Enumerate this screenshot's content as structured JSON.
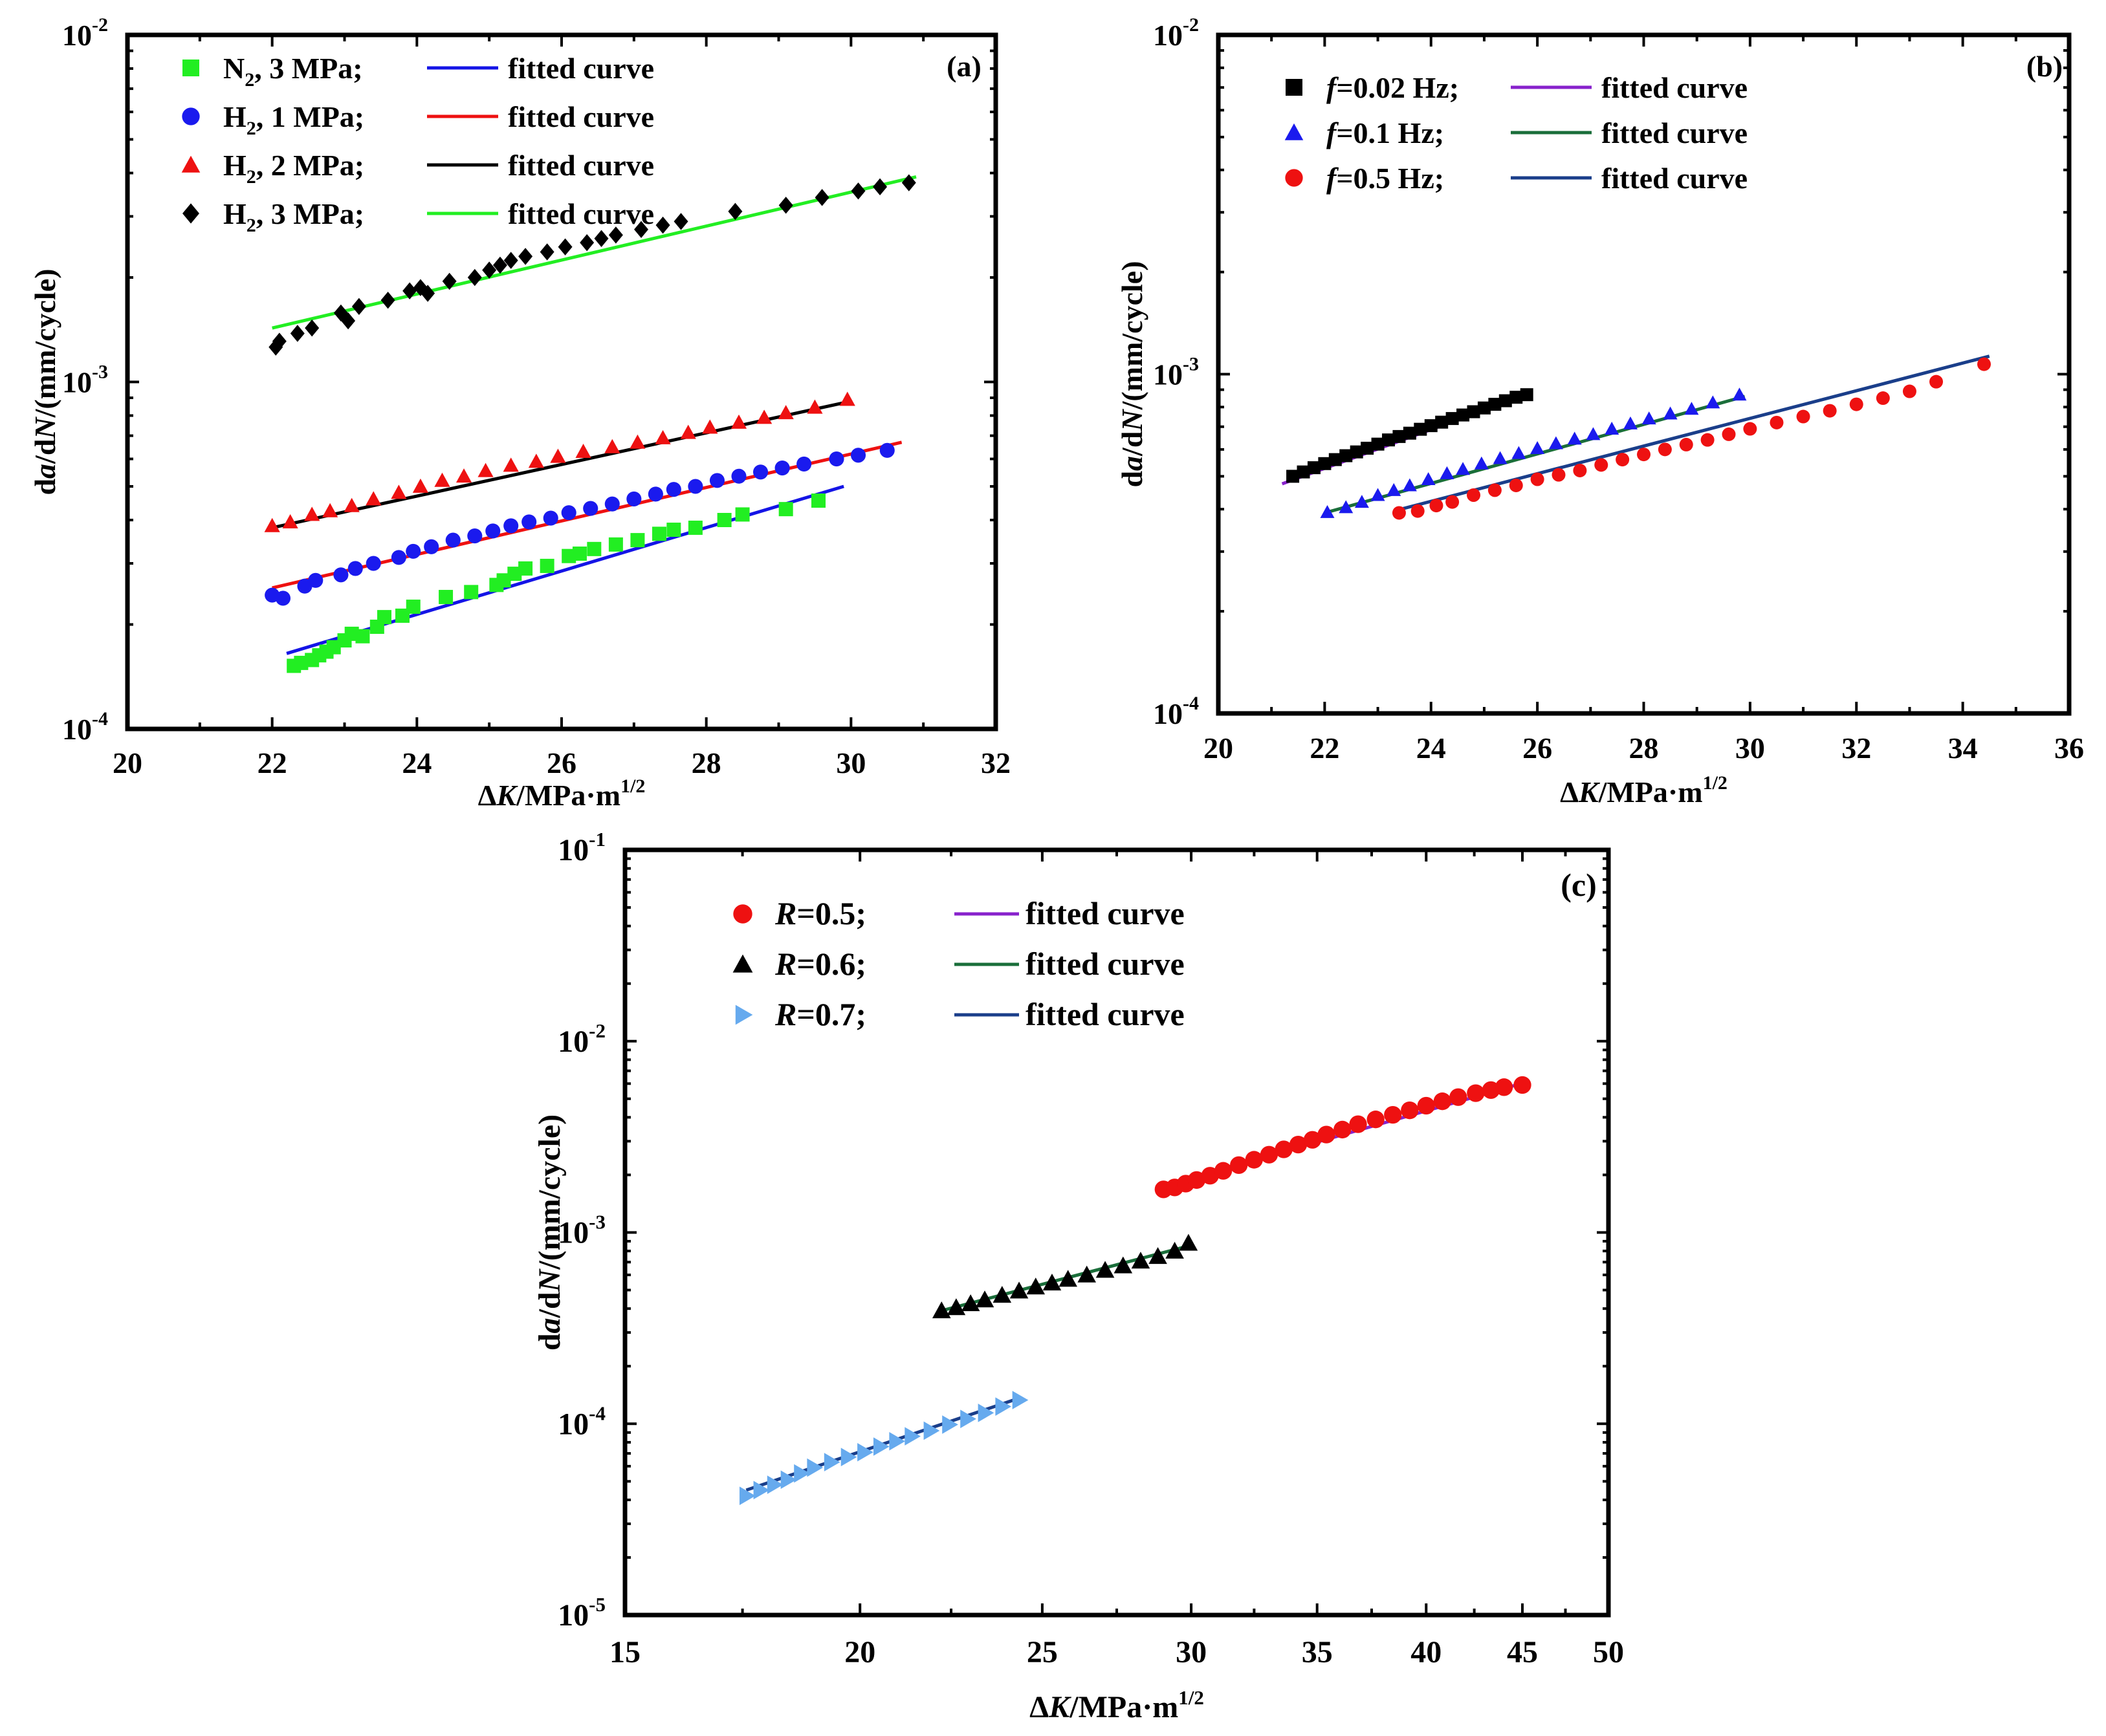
{
  "chart_data": [
    {
      "type": "scatter",
      "panel_label": "(a)",
      "xlabel": "ΔK/MPa·m1/2",
      "ylabel": "da/dN/(mm/cycle)",
      "xscale": "linear",
      "yscale": "log",
      "xlim": [
        20,
        32
      ],
      "ylim": [
        0.0001,
        0.01
      ],
      "xticks": [
        20,
        22,
        24,
        26,
        28,
        30,
        32
      ],
      "yticks": [
        0.0001,
        0.001,
        0.01
      ],
      "ytick_labels": [
        {
          "base": "10",
          "exp": "-4"
        },
        {
          "base": "10",
          "exp": "-3"
        },
        {
          "base": "10",
          "exp": "-2"
        }
      ],
      "legend_position": "top-left",
      "legend_fit_label": "fitted curve",
      "series": [
        {
          "name": "N2, 3 MPa;",
          "name_base": "N",
          "name_sub": "2",
          "name_rest": ",  3 MPa;",
          "marker": "square",
          "color": "#22ee22",
          "fit_color": "#1414e6",
          "fit": {
            "x0": 22.2,
            "y0": 0.000165,
            "x1": 29.9,
            "y1": 0.0005
          },
          "x": [
            22.3,
            22.4,
            22.55,
            22.65,
            22.75,
            22.85,
            23.0,
            23.1,
            23.25,
            23.45,
            23.55,
            23.8,
            23.95,
            24.4,
            24.75,
            25.1,
            25.2,
            25.35,
            25.5,
            25.8,
            26.1,
            26.25,
            26.45,
            26.75,
            27.05,
            27.35,
            27.55,
            27.85,
            28.25,
            28.5,
            29.1,
            29.55
          ],
          "y": [
            0.000152,
            0.000155,
            0.000158,
            0.000163,
            0.000167,
            0.000172,
            0.00018,
            0.000188,
            0.000185,
            0.000197,
            0.00021,
            0.000212,
            0.000225,
            0.00024,
            0.000248,
            0.00026,
            0.000268,
            0.00028,
            0.00029,
            0.000295,
            0.000315,
            0.00032,
            0.00033,
            0.00034,
            0.00035,
            0.000365,
            0.000375,
            0.00038,
            0.0004,
            0.000415,
            0.00043,
            0.000455
          ]
        },
        {
          "name": "H2, 1 MPa;",
          "name_base": "H",
          "name_sub": "2",
          "name_rest": ",  1 MPa;",
          "marker": "circle",
          "color": "#1a1aee",
          "fit_color": "#ee1111",
          "fit": {
            "x0": 22.0,
            "y0": 0.000255,
            "x1": 30.7,
            "y1": 0.00067
          },
          "x": [
            22.0,
            22.15,
            22.45,
            22.6,
            22.95,
            23.15,
            23.4,
            23.75,
            23.95,
            24.2,
            24.5,
            24.8,
            25.05,
            25.3,
            25.55,
            25.85,
            26.1,
            26.4,
            26.7,
            27.0,
            27.3,
            27.55,
            27.85,
            28.15,
            28.45,
            28.75,
            29.05,
            29.35,
            29.8,
            30.1,
            30.5
          ],
          "y": [
            0.000243,
            0.000238,
            0.000258,
            0.000268,
            0.000278,
            0.00029,
            0.0003,
            0.000312,
            0.000325,
            0.000335,
            0.00035,
            0.00036,
            0.000372,
            0.000385,
            0.000395,
            0.000405,
            0.00042,
            0.000432,
            0.000445,
            0.00046,
            0.000475,
            0.00049,
            0.0005,
            0.00052,
            0.000535,
            0.00055,
            0.000565,
            0.00058,
            0.0006,
            0.000615,
            0.000635
          ]
        },
        {
          "name": "H2, 2 MPa;",
          "name_base": "H",
          "name_sub": "2",
          "name_rest": ",  2 MPa;",
          "marker": "triangle",
          "color": "#ee1111",
          "fit_color": "#000000",
          "fit": {
            "x0": 22.0,
            "y0": 0.00038,
            "x1": 30.0,
            "y1": 0.00088
          },
          "x": [
            22.0,
            22.25,
            22.55,
            22.8,
            23.1,
            23.4,
            23.75,
            24.05,
            24.35,
            24.65,
            24.95,
            25.3,
            25.65,
            25.95,
            26.3,
            26.7,
            27.05,
            27.4,
            27.75,
            28.05,
            28.45,
            28.8,
            29.1,
            29.5,
            29.95
          ],
          "y": [
            0.000385,
            0.000395,
            0.000415,
            0.000425,
            0.00044,
            0.00046,
            0.00048,
            0.0005,
            0.00052,
            0.000535,
            0.000555,
            0.000575,
            0.00059,
            0.00061,
            0.00063,
            0.00065,
            0.00067,
            0.00069,
            0.000715,
            0.00074,
            0.000765,
            0.00079,
            0.000815,
            0.000845,
            0.00089
          ]
        },
        {
          "name": "H2, 3 MPa;",
          "name_base": "H",
          "name_sub": "2",
          "name_rest": ",  3 MPa;",
          "marker": "diamond",
          "color": "#000000",
          "fit_color": "#22ee22",
          "fit": {
            "x0": 22.0,
            "y0": 0.00143,
            "x1": 30.9,
            "y1": 0.0039
          },
          "x": [
            22.05,
            22.1,
            22.35,
            22.55,
            22.95,
            23.05,
            23.2,
            23.6,
            23.9,
            24.05,
            24.15,
            24.45,
            24.8,
            25.0,
            25.15,
            25.3,
            25.5,
            25.8,
            26.05,
            26.35,
            26.55,
            26.75,
            27.1,
            27.4,
            27.65,
            28.4,
            29.1,
            29.6,
            30.1,
            30.4,
            30.8
          ],
          "y": [
            0.00126,
            0.00131,
            0.00138,
            0.00143,
            0.00158,
            0.0015,
            0.00165,
            0.00172,
            0.00183,
            0.00187,
            0.0018,
            0.00195,
            0.002,
            0.0021,
            0.00217,
            0.00224,
            0.0023,
            0.00237,
            0.00245,
            0.00252,
            0.00259,
            0.00265,
            0.00275,
            0.00283,
            0.0029,
            0.0031,
            0.00323,
            0.0034,
            0.00355,
            0.00365,
            0.00375
          ]
        }
      ]
    },
    {
      "type": "scatter",
      "panel_label": "(b)",
      "xlabel": "ΔK/MPa·m1/2",
      "ylabel": "da/dN/(mm/cycle)",
      "xscale": "linear",
      "yscale": "log",
      "xlim": [
        20,
        36
      ],
      "ylim": [
        0.0001,
        0.01
      ],
      "xticks": [
        20,
        22,
        24,
        26,
        28,
        30,
        32,
        34,
        36
      ],
      "yticks": [
        0.0001,
        0.001,
        0.01
      ],
      "ytick_labels": [
        {
          "base": "10",
          "exp": "-4"
        },
        {
          "base": "10",
          "exp": "-3"
        },
        {
          "base": "10",
          "exp": "-2"
        }
      ],
      "legend_position": "top-left",
      "legend_fit_label": "fitted curve",
      "series": [
        {
          "name": "f=0.02 Hz;",
          "name_italic": "f",
          "name_rest": "=0.02 Hz;",
          "marker": "square",
          "color": "#000000",
          "fit_color": "#8822cc",
          "fit": {
            "x0": 21.2,
            "y0": 0.000475,
            "x1": 25.8,
            "y1": 0.00087
          },
          "x": [
            21.4,
            21.6,
            21.8,
            22.0,
            22.2,
            22.4,
            22.6,
            22.8,
            23.0,
            23.2,
            23.4,
            23.6,
            23.8,
            24.0,
            24.2,
            24.4,
            24.6,
            24.8,
            25.0,
            25.2,
            25.4,
            25.6,
            25.8
          ],
          "y": [
            0.0005,
            0.000515,
            0.00053,
            0.000545,
            0.00056,
            0.000575,
            0.00059,
            0.000605,
            0.000622,
            0.00064,
            0.000655,
            0.00067,
            0.000688,
            0.000705,
            0.000722,
            0.00074,
            0.000758,
            0.000775,
            0.000795,
            0.000815,
            0.000835,
            0.000855,
            0.00087
          ]
        },
        {
          "name": "f=0.1 Hz;",
          "name_italic": "f",
          "name_rest": "=0.1 Hz;",
          "marker": "triangle",
          "color": "#1a1aee",
          "fit_color": "#1a6e3a",
          "fit": {
            "x0": 22.0,
            "y0": 0.00039,
            "x1": 29.9,
            "y1": 0.00086
          },
          "x": [
            22.05,
            22.4,
            22.7,
            23.0,
            23.3,
            23.6,
            23.95,
            24.3,
            24.6,
            24.95,
            25.3,
            25.65,
            26.0,
            26.35,
            26.7,
            27.05,
            27.4,
            27.75,
            28.1,
            28.5,
            28.9,
            29.3,
            29.8
          ],
          "y": [
            0.000392,
            0.000405,
            0.00042,
            0.00044,
            0.000455,
            0.00047,
            0.00049,
            0.00051,
            0.000525,
            0.000545,
            0.000565,
            0.000585,
            0.000605,
            0.000625,
            0.000645,
            0.000665,
            0.00069,
            0.000715,
            0.00074,
            0.000765,
            0.00079,
            0.000825,
            0.00087
          ]
        },
        {
          "name": "f=0.5 Hz;",
          "name_italic": "f",
          "name_rest": "=0.5 Hz;",
          "marker": "circle",
          "color": "#ee1111",
          "fit_color": "#1a3e8a",
          "fit": {
            "x0": 23.3,
            "y0": 0.000395,
            "x1": 34.5,
            "y1": 0.00113
          },
          "x": [
            23.4,
            23.75,
            24.1,
            24.4,
            24.8,
            25.2,
            25.6,
            26.0,
            26.4,
            26.8,
            27.2,
            27.6,
            28.0,
            28.4,
            28.8,
            29.2,
            29.6,
            30.0,
            30.5,
            31.0,
            31.5,
            32.0,
            32.5,
            33.0,
            33.5,
            34.4
          ],
          "y": [
            0.00039,
            0.000395,
            0.00041,
            0.00042,
            0.00044,
            0.000455,
            0.00047,
            0.00049,
            0.000505,
            0.00052,
            0.00054,
            0.00056,
            0.00058,
            0.0006,
            0.00062,
            0.00064,
            0.000665,
            0.00069,
            0.00072,
            0.00075,
            0.00078,
            0.000815,
            0.00085,
            0.00089,
            0.00095,
            0.00107
          ]
        }
      ]
    },
    {
      "type": "scatter",
      "panel_label": "(c)",
      "xlabel": "ΔK/MPa·m1/2",
      "ylabel": "da/dN/(mm/cycle)",
      "xscale": "log",
      "yscale": "log",
      "xlim": [
        15,
        50
      ],
      "ylim": [
        1e-05,
        0.1
      ],
      "xticks": [
        15,
        20,
        25,
        30,
        35,
        40,
        45,
        50
      ],
      "yticks": [
        1e-05,
        0.0001,
        0.001,
        0.01,
        0.1
      ],
      "ytick_labels": [
        {
          "base": "10",
          "exp": "-5"
        },
        {
          "base": "10",
          "exp": "-4"
        },
        {
          "base": "10",
          "exp": "-3"
        },
        {
          "base": "10",
          "exp": "-2"
        },
        {
          "base": "10",
          "exp": "-1"
        }
      ],
      "legend_position": "top-left",
      "legend_fit_label": "fitted curve",
      "series": [
        {
          "name": "R=0.5;",
          "name_italic": "R",
          "name_rest": "=0.5;",
          "marker": "circle",
          "color": "#ee1111",
          "fit_color": "#8822cc",
          "fit": {
            "x0": 29.0,
            "y0": 0.00175,
            "x1": 45.2,
            "y1": 0.0061
          },
          "x": [
            29.0,
            29.4,
            29.8,
            30.2,
            30.7,
            31.2,
            31.8,
            32.4,
            33.0,
            33.6,
            34.2,
            34.8,
            35.4,
            36.1,
            36.8,
            37.6,
            38.4,
            39.2,
            40.0,
            40.8,
            41.6,
            42.5,
            43.3,
            44.0,
            45.0
          ],
          "y": [
            0.00168,
            0.00172,
            0.0018,
            0.00188,
            0.00198,
            0.0021,
            0.00225,
            0.0024,
            0.00255,
            0.00272,
            0.00288,
            0.00305,
            0.00325,
            0.00345,
            0.00368,
            0.0039,
            0.00412,
            0.00435,
            0.0046,
            0.00485,
            0.0051,
            0.00535,
            0.00555,
            0.00575,
            0.0059
          ]
        },
        {
          "name": "R=0.6;",
          "name_italic": "R",
          "name_rest": "=0.6;",
          "marker": "triangle",
          "color": "#000000",
          "fit_color": "#1a6e3a",
          "fit": {
            "x0": 22.1,
            "y0": 0.00039,
            "x1": 29.9,
            "y1": 0.00085
          },
          "x": [
            22.1,
            22.5,
            22.9,
            23.3,
            23.8,
            24.3,
            24.8,
            25.3,
            25.8,
            26.4,
            27.0,
            27.6,
            28.2,
            28.8,
            29.4,
            29.9
          ],
          "y": [
            0.00039,
            0.000405,
            0.000425,
            0.000445,
            0.00047,
            0.000495,
            0.00052,
            0.000545,
            0.00057,
            0.0006,
            0.000635,
            0.00067,
            0.00071,
            0.00075,
            0.0008,
            0.00088
          ]
        },
        {
          "name": "R=0.7;",
          "name_italic": "R",
          "name_rest": "=0.7;",
          "marker": "triangle-right",
          "color": "#66aaee",
          "fit_color": "#1a3e8a",
          "fit": {
            "x0": 17.4,
            "y0": 4.5e-05,
            "x1": 24.3,
            "y1": 0.000136
          },
          "x": [
            17.4,
            17.7,
            18.0,
            18.3,
            18.6,
            18.9,
            19.3,
            19.7,
            20.1,
            20.5,
            20.9,
            21.3,
            21.8,
            22.3,
            22.8,
            23.3,
            23.8,
            24.3
          ],
          "y": [
            4.2e-05,
            4.5e-05,
            4.8e-05,
            5.1e-05,
            5.5e-05,
            5.9e-05,
            6.3e-05,
            6.7e-05,
            7.1e-05,
            7.6e-05,
            8.1e-05,
            8.6e-05,
            9.2e-05,
            9.9e-05,
            0.000106,
            0.000114,
            0.000123,
            0.000133
          ]
        }
      ]
    }
  ]
}
